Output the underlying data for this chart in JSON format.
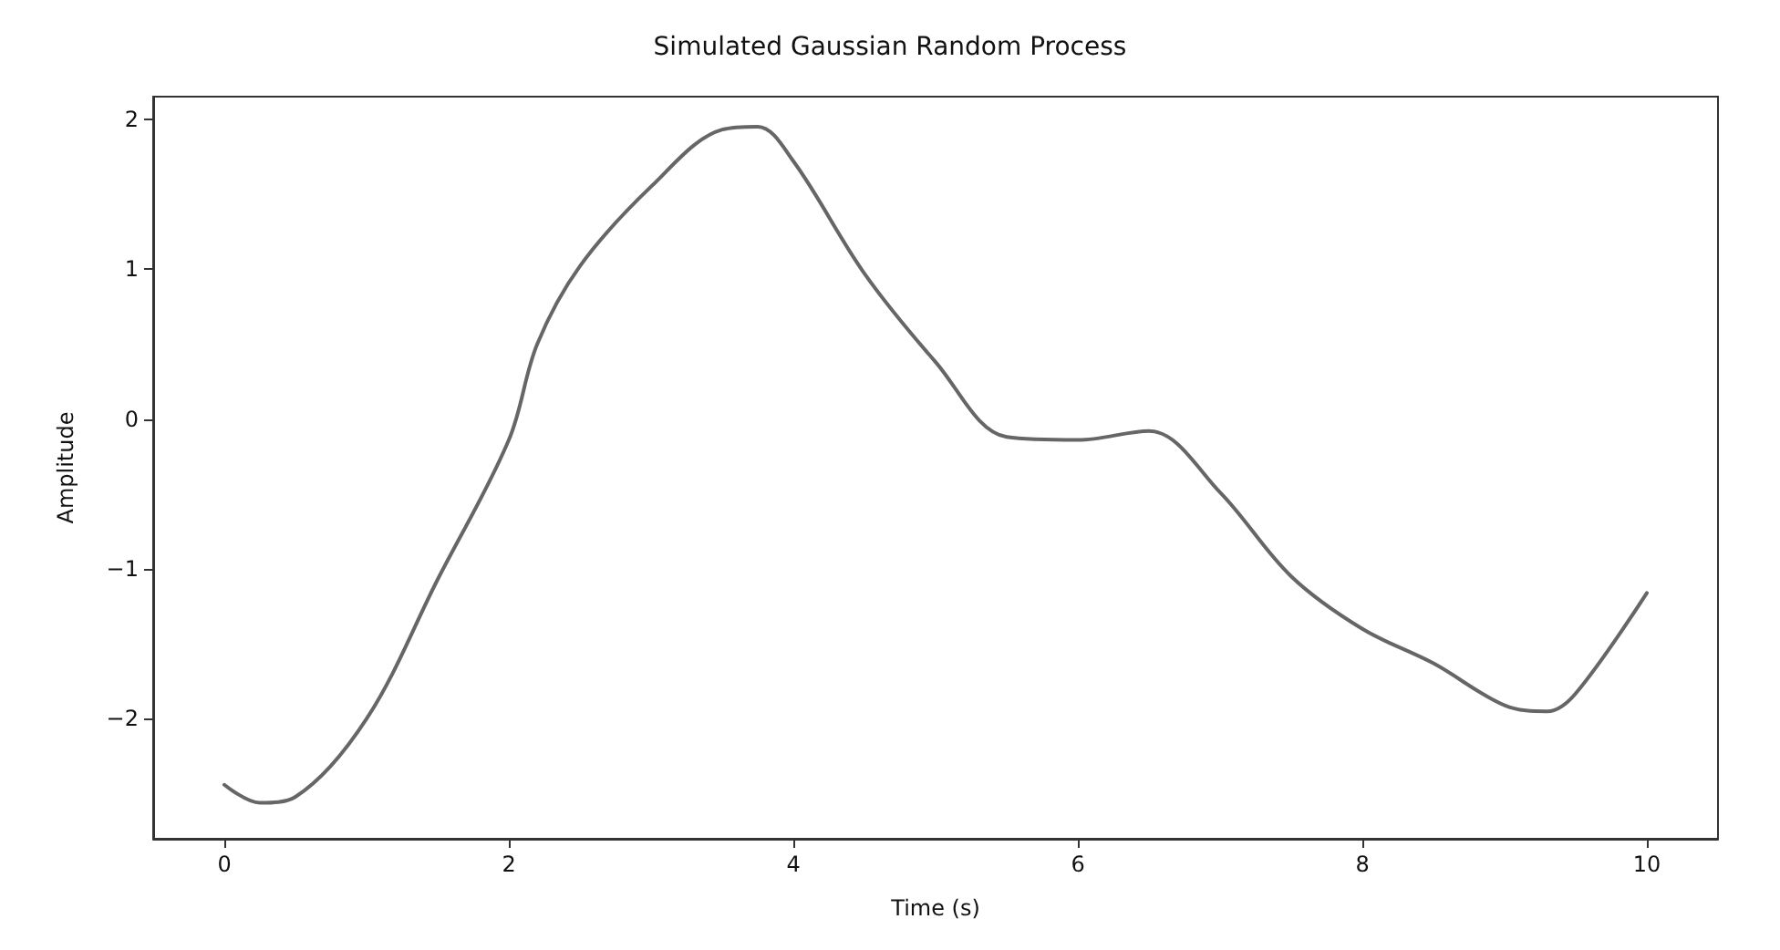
{
  "chart_data": {
    "type": "line",
    "title": "Simulated Gaussian Random Process",
    "xlabel": "Time (s)",
    "ylabel": "Amplitude",
    "x": [
      0,
      0.25,
      0.5,
      1,
      1.5,
      2,
      2.2,
      2.5,
      3,
      3.5,
      3.75,
      4,
      4.5,
      5,
      5.5,
      6,
      6.5,
      7,
      7.5,
      8,
      8.5,
      9,
      9.3,
      9.5,
      10
    ],
    "series": [
      {
        "color": "#666666",
        "values": [
          -2.44,
          -2.56,
          -2.52,
          -2.0,
          -1.07,
          -0.14,
          0.5,
          1.02,
          1.55,
          1.93,
          1.95,
          1.72,
          0.97,
          0.38,
          -0.12,
          -0.14,
          -0.08,
          -0.49,
          -1.05,
          -1.4,
          -1.63,
          -1.91,
          -1.95,
          -1.83,
          -1.16
        ]
      }
    ],
    "xlim": [
      -0.5,
      10.5
    ],
    "xticks": [
      0,
      2,
      4,
      6,
      8,
      10
    ],
    "ylim": [
      -2.8,
      2.15
    ],
    "yticks": [
      -2,
      -1,
      0,
      1,
      2
    ],
    "grid": false,
    "marker": "none",
    "line_style": "solid"
  }
}
